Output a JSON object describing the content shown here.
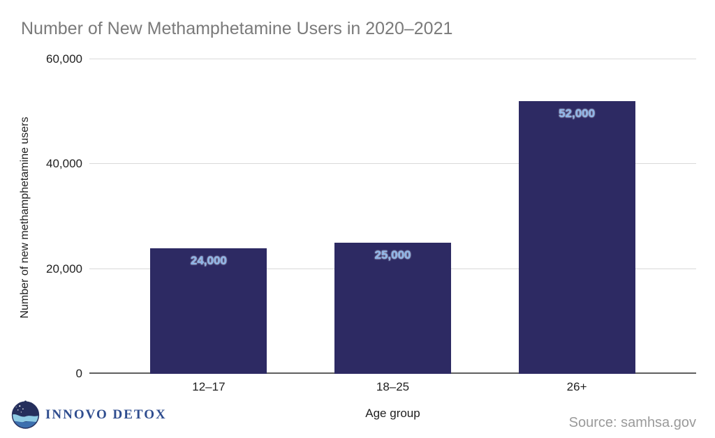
{
  "chart_data": {
    "type": "bar",
    "title": "Number of New Methamphetamine Users in 2020–2021",
    "categories": [
      "12–17",
      "18–25",
      "26+"
    ],
    "values": [
      24000,
      25000,
      52000
    ],
    "value_labels": [
      "24,000",
      "25,000",
      "52,000"
    ],
    "xlabel": "Age group",
    "ylabel": "Number of new methamphetamine users",
    "ylim": [
      0,
      60000
    ],
    "yticks": [
      0,
      20000,
      40000,
      60000
    ],
    "ytick_labels": [
      "0",
      "20,000",
      "40,000",
      "60,000"
    ],
    "grid": true,
    "legend": "none"
  },
  "colors": {
    "bar": "#2d2a63",
    "bar_value_label": "#8ab4e8",
    "title_text": "#7a7a7a",
    "axis_text": "#1f1f1f",
    "gridline": "#d9d9d9",
    "axis_line": "#5f5f5f",
    "source_text": "#9a9a9a",
    "logo_text": "#2f4d8f",
    "logo_dark_navy": "#252f5c",
    "logo_light_blue": "#8ecbe4",
    "logo_mid_blue": "#3c6fae"
  },
  "footer": {
    "logo_text": "INNOVO DETOX",
    "source": "Source: samhsa.gov"
  }
}
